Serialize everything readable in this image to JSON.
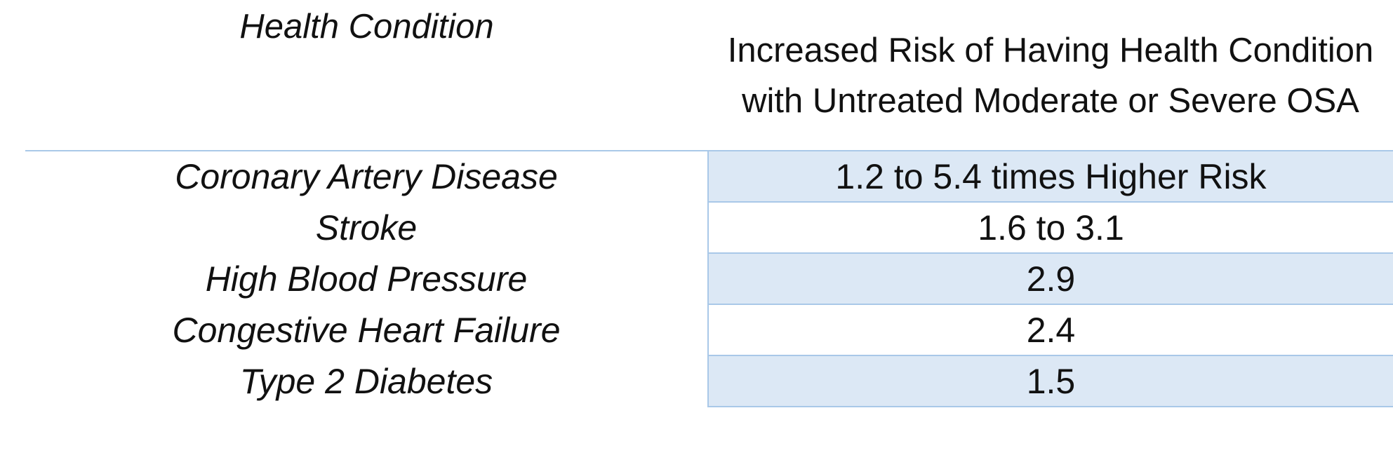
{
  "table": {
    "headers": {
      "condition": "Health Condition",
      "risk": "Increased Risk of Having Health Condition with Untreated Moderate or Severe OSA"
    },
    "rows": [
      {
        "condition": "Coronary Artery Disease",
        "risk": "1.2 to 5.4 times Higher Risk"
      },
      {
        "condition": "Stroke",
        "risk": "1.6 to 3.1"
      },
      {
        "condition": "High Blood Pressure",
        "risk": "2.9"
      },
      {
        "condition": "Congestive Heart Failure",
        "risk": "2.4"
      },
      {
        "condition": "Type 2 Diabetes",
        "risk": "1.5"
      }
    ],
    "colors": {
      "band_fill": "#dce8f5",
      "border": "#a9c8e8"
    }
  }
}
